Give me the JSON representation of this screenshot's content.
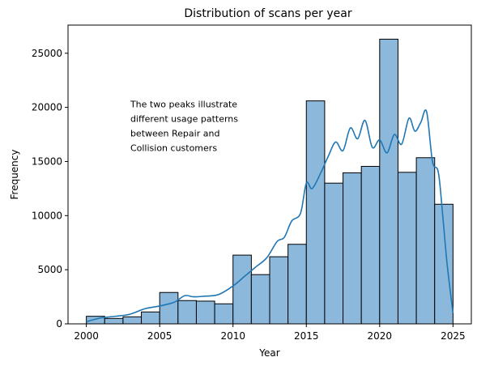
{
  "chart_data": {
    "type": "bar",
    "title": "Distribution of scans per year",
    "xlabel": "Year",
    "ylabel": "Frequency",
    "xlim": [
      1998.75,
      2026.25
    ],
    "ylim": [
      0,
      27600
    ],
    "xticks": [
      2000,
      2005,
      2010,
      2015,
      2020,
      2025
    ],
    "yticks": [
      0,
      5000,
      10000,
      15000,
      20000,
      25000
    ],
    "grid": false,
    "legend": "none",
    "bins": [
      {
        "x0": 2000.0,
        "x1": 2001.25,
        "value": 700
      },
      {
        "x0": 2001.25,
        "x1": 2002.5,
        "value": 500
      },
      {
        "x0": 2002.5,
        "x1": 2003.75,
        "value": 650
      },
      {
        "x0": 2003.75,
        "x1": 2005.0,
        "value": 1100
      },
      {
        "x0": 2005.0,
        "x1": 2006.25,
        "value": 2900
      },
      {
        "x0": 2006.25,
        "x1": 2007.5,
        "value": 2150
      },
      {
        "x0": 2007.5,
        "x1": 2008.75,
        "value": 2100
      },
      {
        "x0": 2008.75,
        "x1": 2010.0,
        "value": 1850
      },
      {
        "x0": 2010.0,
        "x1": 2011.25,
        "value": 6350
      },
      {
        "x0": 2011.25,
        "x1": 2012.5,
        "value": 4550
      },
      {
        "x0": 2012.5,
        "x1": 2013.75,
        "value": 6200
      },
      {
        "x0": 2013.75,
        "x1": 2015.0,
        "value": 7350
      },
      {
        "x0": 2015.0,
        "x1": 2016.25,
        "value": 20600
      },
      {
        "x0": 2016.25,
        "x1": 2017.5,
        "value": 13000
      },
      {
        "x0": 2017.5,
        "x1": 2018.75,
        "value": 13950
      },
      {
        "x0": 2018.75,
        "x1": 2020.0,
        "value": 14550
      },
      {
        "x0": 2020.0,
        "x1": 2021.25,
        "value": 26300
      },
      {
        "x0": 2021.25,
        "x1": 2022.5,
        "value": 14000
      },
      {
        "x0": 2022.5,
        "x1": 2023.75,
        "value": 15350
      },
      {
        "x0": 2023.75,
        "x1": 2025.0,
        "value": 11050
      }
    ],
    "kde": {
      "x": [
        2000,
        2001,
        2002,
        2003,
        2004,
        2005,
        2006,
        2006.7,
        2007.3,
        2008,
        2009,
        2010,
        2010.8,
        2011.5,
        2012.3,
        2013,
        2013.5,
        2014,
        2014.6,
        2015,
        2015.4,
        2016,
        2016.5,
        2017,
        2017.5,
        2018,
        2018.5,
        2019,
        2019.5,
        2020,
        2020.5,
        2021,
        2021.5,
        2022,
        2022.4,
        2022.8,
        2023.2,
        2023.6,
        2024,
        2024.3,
        2024.6,
        2025
      ],
      "y": [
        200,
        550,
        700,
        900,
        1400,
        1650,
        2000,
        2600,
        2500,
        2550,
        2700,
        3500,
        4400,
        5200,
        6100,
        7600,
        8000,
        9500,
        10200,
        13000,
        12500,
        14000,
        15500,
        16800,
        16000,
        18100,
        17100,
        18800,
        16300,
        17000,
        15800,
        17500,
        16600,
        19000,
        17800,
        18600,
        19600,
        15000,
        14000,
        10000,
        5500,
        1000
      ]
    },
    "annotation": {
      "lines": [
        "The two peaks illustrate",
        "different usage patterns",
        "between Repair and",
        "Collision customers"
      ],
      "x": 2003,
      "y": 20000
    },
    "colors": {
      "bar_fill": "#8cb8dc",
      "bar_edge": "#000000",
      "kde_line": "#1f77b4",
      "axes": "#000000"
    }
  }
}
